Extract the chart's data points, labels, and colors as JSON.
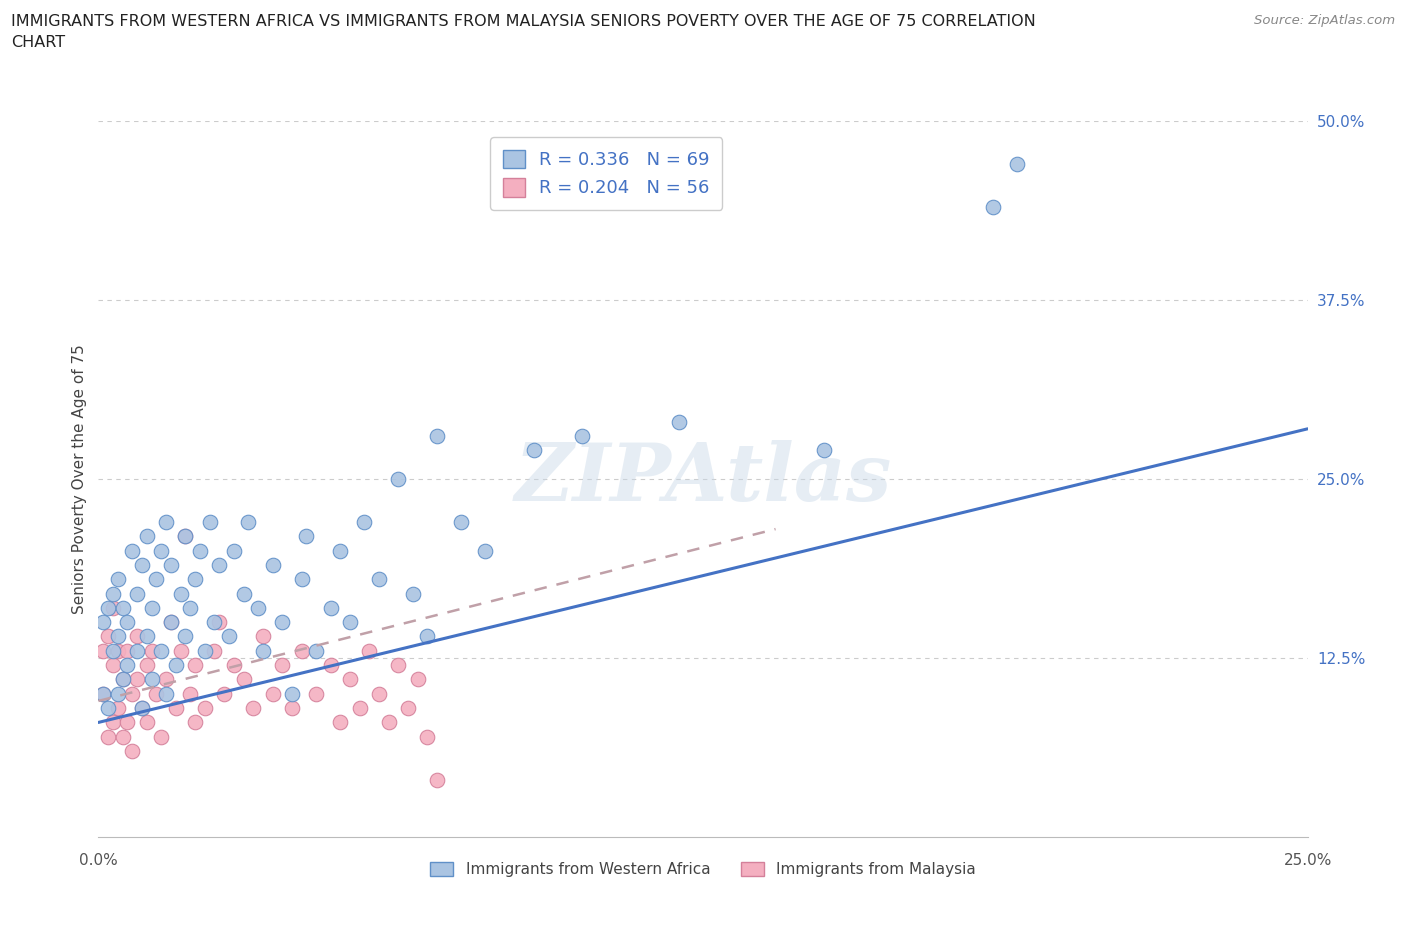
{
  "title": "IMMIGRANTS FROM WESTERN AFRICA VS IMMIGRANTS FROM MALAYSIA SENIORS POVERTY OVER THE AGE OF 75 CORRELATION\nCHART",
  "source": "Source: ZipAtlas.com",
  "ylabel": "Seniors Poverty Over the Age of 75",
  "xlim": [
    0.0,
    0.25
  ],
  "ylim": [
    0.0,
    0.5
  ],
  "xticks": [
    0.0,
    0.025,
    0.05,
    0.075,
    0.1,
    0.125,
    0.15,
    0.175,
    0.2,
    0.225,
    0.25
  ],
  "yticks": [
    0.0,
    0.125,
    0.25,
    0.375,
    0.5
  ],
  "watermark": "ZIPAtlas",
  "R_blue": 0.336,
  "N_blue": 69,
  "R_pink": 0.204,
  "N_pink": 56,
  "blue_color": "#aac4e2",
  "pink_color": "#f4afc0",
  "line_blue": "#4472c4",
  "legend_label_blue": "Immigrants from Western Africa",
  "legend_label_pink": "Immigrants from Malaysia",
  "blue_scatter_x": [
    0.001,
    0.001,
    0.002,
    0.002,
    0.003,
    0.003,
    0.004,
    0.004,
    0.004,
    0.005,
    0.005,
    0.006,
    0.006,
    0.007,
    0.008,
    0.008,
    0.009,
    0.009,
    0.01,
    0.01,
    0.011,
    0.011,
    0.012,
    0.013,
    0.013,
    0.014,
    0.014,
    0.015,
    0.015,
    0.016,
    0.017,
    0.018,
    0.018,
    0.019,
    0.02,
    0.021,
    0.022,
    0.023,
    0.024,
    0.025,
    0.027,
    0.028,
    0.03,
    0.031,
    0.033,
    0.034,
    0.036,
    0.038,
    0.04,
    0.042,
    0.043,
    0.045,
    0.048,
    0.05,
    0.052,
    0.055,
    0.058,
    0.062,
    0.065,
    0.068,
    0.07,
    0.075,
    0.08,
    0.09,
    0.1,
    0.12,
    0.15,
    0.185,
    0.19
  ],
  "blue_scatter_y": [
    0.1,
    0.15,
    0.09,
    0.16,
    0.13,
    0.17,
    0.1,
    0.14,
    0.18,
    0.11,
    0.16,
    0.12,
    0.15,
    0.2,
    0.13,
    0.17,
    0.09,
    0.19,
    0.14,
    0.21,
    0.11,
    0.16,
    0.18,
    0.13,
    0.2,
    0.1,
    0.22,
    0.15,
    0.19,
    0.12,
    0.17,
    0.14,
    0.21,
    0.16,
    0.18,
    0.2,
    0.13,
    0.22,
    0.15,
    0.19,
    0.14,
    0.2,
    0.17,
    0.22,
    0.16,
    0.13,
    0.19,
    0.15,
    0.1,
    0.18,
    0.21,
    0.13,
    0.16,
    0.2,
    0.15,
    0.22,
    0.18,
    0.25,
    0.17,
    0.14,
    0.28,
    0.22,
    0.2,
    0.27,
    0.28,
    0.29,
    0.27,
    0.44,
    0.47
  ],
  "pink_scatter_x": [
    0.001,
    0.001,
    0.002,
    0.002,
    0.003,
    0.003,
    0.003,
    0.004,
    0.004,
    0.005,
    0.005,
    0.006,
    0.006,
    0.007,
    0.007,
    0.008,
    0.008,
    0.009,
    0.01,
    0.01,
    0.011,
    0.012,
    0.013,
    0.014,
    0.015,
    0.016,
    0.017,
    0.018,
    0.019,
    0.02,
    0.02,
    0.022,
    0.024,
    0.025,
    0.026,
    0.028,
    0.03,
    0.032,
    0.034,
    0.036,
    0.038,
    0.04,
    0.042,
    0.045,
    0.048,
    0.05,
    0.052,
    0.054,
    0.056,
    0.058,
    0.06,
    0.062,
    0.064,
    0.066,
    0.068,
    0.07
  ],
  "pink_scatter_y": [
    0.13,
    0.1,
    0.07,
    0.14,
    0.08,
    0.12,
    0.16,
    0.09,
    0.13,
    0.07,
    0.11,
    0.08,
    0.13,
    0.1,
    0.06,
    0.11,
    0.14,
    0.09,
    0.12,
    0.08,
    0.13,
    0.1,
    0.07,
    0.11,
    0.15,
    0.09,
    0.13,
    0.21,
    0.1,
    0.12,
    0.08,
    0.09,
    0.13,
    0.15,
    0.1,
    0.12,
    0.11,
    0.09,
    0.14,
    0.1,
    0.12,
    0.09,
    0.13,
    0.1,
    0.12,
    0.08,
    0.11,
    0.09,
    0.13,
    0.1,
    0.08,
    0.12,
    0.09,
    0.11,
    0.07,
    0.04
  ],
  "blue_line_x": [
    0.0,
    0.25
  ],
  "blue_line_y": [
    0.08,
    0.285
  ],
  "pink_line_x": [
    0.0,
    0.14
  ],
  "pink_line_y": [
    0.095,
    0.215
  ]
}
